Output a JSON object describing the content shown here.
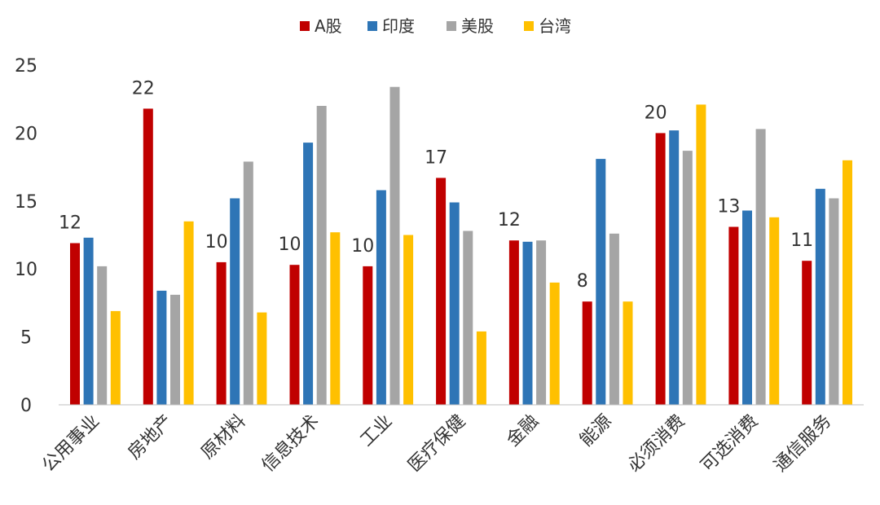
{
  "chart_data": {
    "type": "bar",
    "title": "",
    "xlabel": "",
    "ylabel": "",
    "ylim": [
      0,
      25
    ],
    "yticks": [
      0,
      5,
      10,
      15,
      20,
      25
    ],
    "grid": false,
    "legend_position": "top-center",
    "categories": [
      "公用事业",
      "房地产",
      "原材料",
      "信息技术",
      "工业",
      "医疗保健",
      "金融",
      "能源",
      "必须消费",
      "可选消费",
      "通信服务"
    ],
    "series": [
      {
        "name": "A股",
        "color": "#C00000",
        "values": [
          11.9,
          21.8,
          10.5,
          10.3,
          10.2,
          16.7,
          12.1,
          7.6,
          20.0,
          13.1,
          10.6
        ]
      },
      {
        "name": "印度",
        "color": "#2E75B6",
        "values": [
          12.3,
          8.4,
          15.2,
          19.3,
          15.8,
          14.9,
          12.0,
          18.1,
          20.2,
          14.3,
          15.9
        ]
      },
      {
        "name": "美股",
        "color": "#A5A5A5",
        "values": [
          10.2,
          8.1,
          17.9,
          22.0,
          23.4,
          12.8,
          12.1,
          12.6,
          18.7,
          20.3,
          15.2
        ]
      },
      {
        "name": "台湾",
        "color": "#FFC000",
        "values": [
          6.9,
          13.5,
          6.8,
          12.7,
          12.5,
          5.4,
          9.0,
          7.6,
          22.1,
          13.8,
          18.0
        ]
      }
    ],
    "data_labels": {
      "series": "A股",
      "labels": [
        "12",
        "22",
        "10",
        "10",
        "10",
        "17",
        "12",
        "8",
        "20",
        "13",
        "11"
      ]
    }
  }
}
